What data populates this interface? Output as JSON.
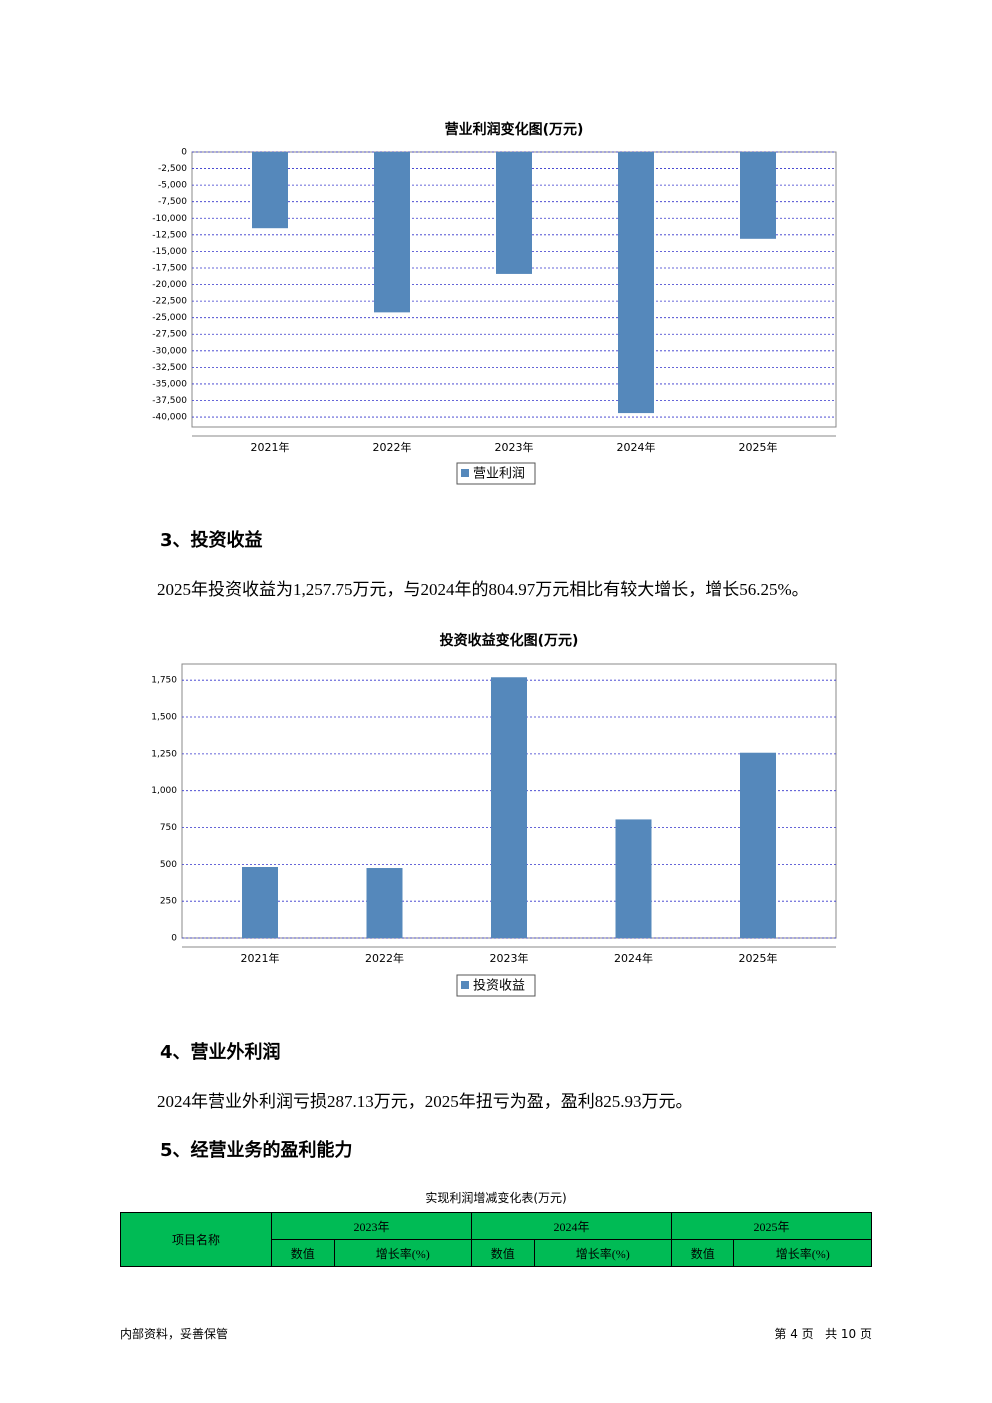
{
  "chart_data": [
    {
      "type": "bar",
      "title": "营业利润变化图(万元)",
      "categories": [
        "2021年",
        "2022年",
        "2023年",
        "2024年",
        "2025年"
      ],
      "series": [
        {
          "name": "营业利润",
          "color": "#5588bb",
          "values": [
            -11500,
            -24200,
            -18400,
            -39400,
            -13100
          ]
        }
      ],
      "ylim": [
        -41500,
        0
      ],
      "yticks": [
        0,
        {
          "value": -2500,
          "label": "-2,500"
        },
        {
          "value": -5000,
          "label": "-5,000"
        },
        {
          "value": -7500,
          "label": "-7,500"
        },
        {
          "value": -10000,
          "label": "-10,000"
        },
        {
          "value": -12500,
          "label": "-12,500"
        },
        {
          "value": -15000,
          "label": "-15,000"
        },
        {
          "value": -17500,
          "label": "-17,500"
        },
        {
          "value": -20000,
          "label": "-20,000"
        },
        {
          "value": -22500,
          "label": "-22,500"
        },
        {
          "value": -25000,
          "label": "-25,000"
        },
        {
          "value": -27500,
          "label": "-27,500"
        },
        {
          "value": -30000,
          "label": "-30,000"
        },
        {
          "value": -32500,
          "label": "-32,500"
        },
        {
          "value": -35000,
          "label": "-35,000"
        },
        {
          "value": -37500,
          "label": "-37,500"
        },
        {
          "value": -40000,
          "label": "-40,000"
        }
      ],
      "grid": true
    },
    {
      "type": "bar",
      "title": "投资收益变化图(万元)",
      "categories": [
        "2021年",
        "2022年",
        "2023年",
        "2024年",
        "2025年"
      ],
      "series": [
        {
          "name": "投资收益",
          "color": "#5588bb",
          "values": [
            482,
            475,
            1770,
            804.97,
            1257.75
          ]
        }
      ],
      "ylim": [
        0,
        1860
      ],
      "yticks": [
        0,
        250,
        500,
        750,
        {
          "value": 1000,
          "label": "1,000"
        },
        {
          "value": 1250,
          "label": "1,250"
        },
        {
          "value": 1500,
          "label": "1,500"
        },
        {
          "value": 1750,
          "label": "1,750"
        }
      ],
      "grid": true
    }
  ],
  "sections": [
    {
      "heading": "3、投资收益",
      "text": "2025年投资收益为1,257.75万元，与2024年的804.97万元相比有较大增长，增长56.25%。"
    },
    {
      "heading": "4、营业外利润",
      "text": "2024年营业外利润亏损287.13万元，2025年扭亏为盈，盈利825.93万元。"
    },
    {
      "heading": "5、经营业务的盈利能力"
    }
  ],
  "table": {
    "title": "实现利润增减变化表(万元)",
    "item_header": "项目名称",
    "years": [
      "2023年",
      "2024年",
      "2025年"
    ],
    "subheaders": [
      "数值",
      "增长率(%)",
      "数值",
      "增长率(%)",
      "数值",
      "增长率(%)"
    ]
  },
  "footer": {
    "left": "内部资料，妥善保管",
    "right": "第 4 页   共 10 页"
  }
}
